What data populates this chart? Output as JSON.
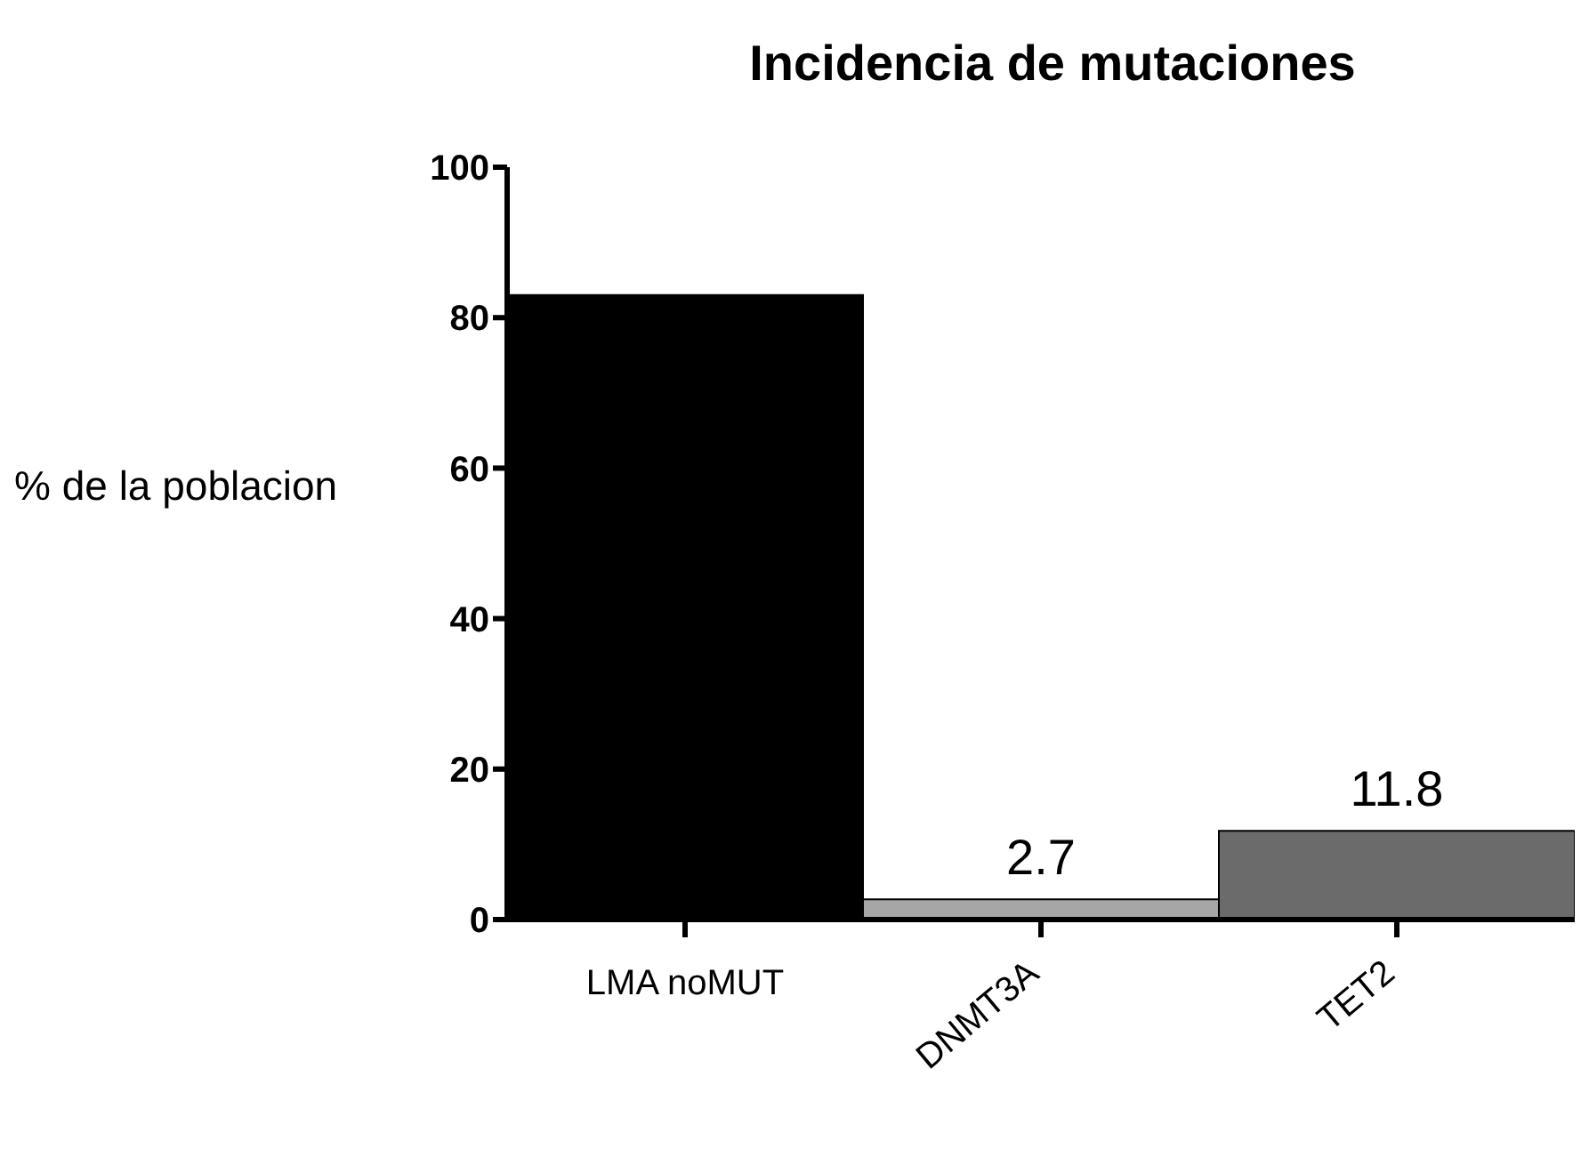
{
  "chart_data": {
    "type": "bar",
    "title": "Incidencia de mutaciones",
    "ylabel": "% de la poblacion",
    "categories": [
      "LMA noMUT",
      "DNMT3A",
      "TET2"
    ],
    "values": [
      83,
      2.7,
      11.8
    ],
    "colors": [
      "#000000",
      "#a6a6a6",
      "#6b6b6b"
    ],
    "value_labels": [
      null,
      "2.7",
      "11.8"
    ],
    "ylim": [
      0,
      100
    ],
    "yticks": [
      0,
      20,
      40,
      60,
      80,
      100
    ],
    "grid": false
  }
}
